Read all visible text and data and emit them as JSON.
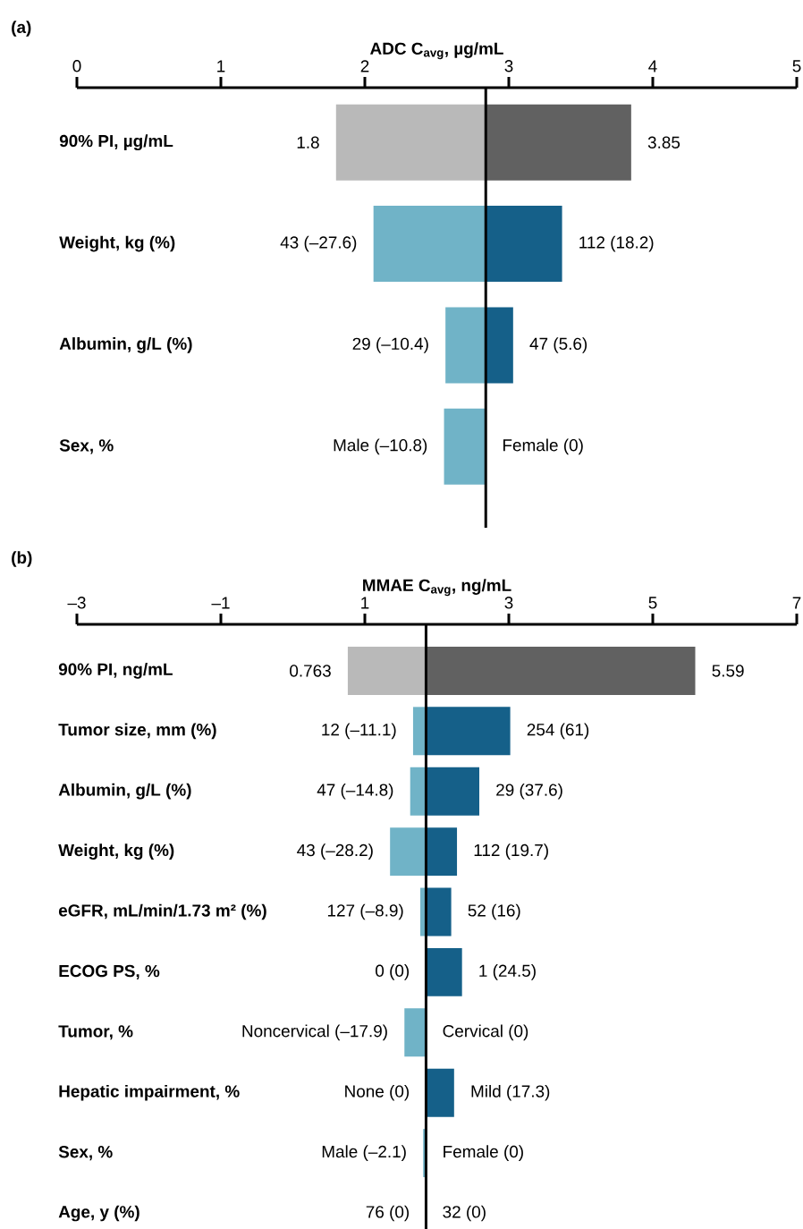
{
  "chart_data": [
    {
      "type": "bar",
      "orientation": "horizontal",
      "title": "(a)",
      "xlabel": "ADC C$_{avg}$, µg/mL",
      "categories": [
        "90% PI, µg/mL",
        "Weight, kg (%)",
        "Albumin, g/L (%)",
        "Sex, %"
      ],
      "series": [
        {
          "colors": [
            "#b9b9b9",
            "#70b3c7",
            "#70b3c7",
            "#70b3c7"
          ],
          "base": [
            1.8,
            2.06,
            2.56,
            2.55
          ],
          "values": [
            1.04,
            0.78,
            0.28,
            0.29
          ]
        },
        {
          "colors": [
            "#616161",
            "#156089",
            "#156089",
            "#156089"
          ],
          "base": [
            2.84,
            2.84,
            2.84,
            null
          ],
          "values": [
            1.01,
            0.53,
            0.19,
            null
          ]
        }
      ],
      "annotations": [
        {
          "text": "1.8",
          "x": 1.8,
          "y": "90% PI, µg/mL"
        },
        {
          "text": "3.85",
          "x": 3.85,
          "y": "90% PI, µg/mL"
        },
        {
          "text": "43 (–27.6)",
          "x": 2.06,
          "y": "Weight, kg (%)"
        },
        {
          "text": "112 (18.2)",
          "x": 3.37,
          "y": "Weight, kg (%)"
        },
        {
          "text": "29 (–10.4)",
          "x": 2.56,
          "y": "Albumin, g/L (%)"
        },
        {
          "text": "47 (5.6)",
          "x": 3.03,
          "y": "Albumin, g/L (%)"
        },
        {
          "text": "Male (–10.8)",
          "x": 2.55,
          "y": "Sex, %"
        },
        {
          "text": "Female (0)",
          "x": 2.84,
          "y": "Sex, %"
        }
      ],
      "xlim": [
        0,
        5
      ],
      "xticks": [
        0,
        1,
        2,
        3,
        4,
        5
      ],
      "ref_lines": [
        {
          "axis": "x",
          "value": 2.84
        }
      ]
    },
    {
      "type": "bar",
      "orientation": "horizontal",
      "title": "(b)",
      "xlabel": "MMAE C$_{avg}$, ng/mL",
      "categories": [
        "90% PI, ng/mL",
        "Tumor size, mm (%)",
        "Albumin, g/L (%)",
        "Weight, kg (%)",
        "eGFR, mL/min/1.73 m² (%)",
        "ECOG PS, %",
        "Tumor, %",
        "Hepatic impairment, %",
        "Sex, %",
        "Age, y (%)"
      ],
      "series": [
        {
          "colors": [
            "#b9b9b9",
            "#70b3c7",
            "#70b3c7",
            "#70b3c7",
            "#70b3c7",
            "#70b3c7",
            "#70b3c7",
            "#70b3c7",
            "#70b3c7",
            "#70b3c7"
          ],
          "base": [
            0.763,
            1.67,
            1.63,
            1.35,
            1.77,
            null,
            1.55,
            null,
            1.81,
            null
          ],
          "values": [
            1.09,
            0.18,
            0.22,
            0.5,
            0.08,
            null,
            0.3,
            null,
            0.04,
            null
          ]
        },
        {
          "colors": [
            "#616161",
            "#156089",
            "#156089",
            "#156089",
            "#156089",
            "#156089",
            "#156089",
            "#156089",
            "#156089",
            "#156089"
          ],
          "base": [
            1.85,
            1.85,
            1.85,
            1.85,
            1.85,
            1.85,
            null,
            1.85,
            null,
            null
          ],
          "values": [
            3.74,
            1.17,
            0.74,
            0.43,
            0.35,
            0.5,
            null,
            0.39,
            null,
            null
          ]
        }
      ],
      "annotations": [
        {
          "text": "0.763",
          "x": 0.763,
          "y": "90% PI, ng/mL"
        },
        {
          "text": "5.59",
          "x": 5.59,
          "y": "90% PI, ng/mL"
        },
        {
          "text": "12 (–11.1)",
          "x": 1.67,
          "y": "Tumor size, mm (%)"
        },
        {
          "text": "254 (61)",
          "x": 3.02,
          "y": "Tumor size, mm (%)"
        },
        {
          "text": "47 (–14.8)",
          "x": 1.63,
          "y": "Albumin, g/L (%)"
        },
        {
          "text": "29 (37.6)",
          "x": 2.59,
          "y": "Albumin, g/L (%)"
        },
        {
          "text": "43 (–28.2)",
          "x": 1.35,
          "y": "Weight, kg (%)"
        },
        {
          "text": "112 (19.7)",
          "x": 2.28,
          "y": "Weight, kg (%)"
        },
        {
          "text": "127 (–8.9)",
          "x": 1.77,
          "y": "eGFR, mL/min/1.73 m² (%)"
        },
        {
          "text": "52 (16)",
          "x": 2.2,
          "y": "eGFR, mL/min/1.73 m² (%)"
        },
        {
          "text": "0 (0)",
          "x": 1.85,
          "y": "ECOG PS, %"
        },
        {
          "text": "1 (24.5)",
          "x": 2.35,
          "y": "ECOG PS, %"
        },
        {
          "text": "Noncervical (–17.9)",
          "x": 1.55,
          "y": "Tumor, %"
        },
        {
          "text": "Cervical (0)",
          "x": 1.85,
          "y": "Tumor, %"
        },
        {
          "text": "None (0)",
          "x": 1.85,
          "y": "Hepatic impairment, %"
        },
        {
          "text": "Mild (17.3)",
          "x": 2.24,
          "y": "Hepatic impairment, %"
        },
        {
          "text": "Male (–2.1)",
          "x": 1.81,
          "y": "Sex, %"
        },
        {
          "text": "Female (0)",
          "x": 1.85,
          "y": "Sex, %"
        },
        {
          "text": "76 (0)",
          "x": 1.85,
          "y": "Age, y (%)"
        },
        {
          "text": "32 (0)",
          "x": 1.85,
          "y": "Age, y (%)"
        }
      ],
      "xlim": [
        -3,
        7
      ],
      "xticks": [
        {
          "value": -3,
          "label": "–3"
        },
        {
          "value": -1,
          "label": "–1"
        },
        1,
        3,
        5,
        7
      ],
      "ref_lines": [
        {
          "axis": "x",
          "value": 1.85
        }
      ]
    }
  ]
}
